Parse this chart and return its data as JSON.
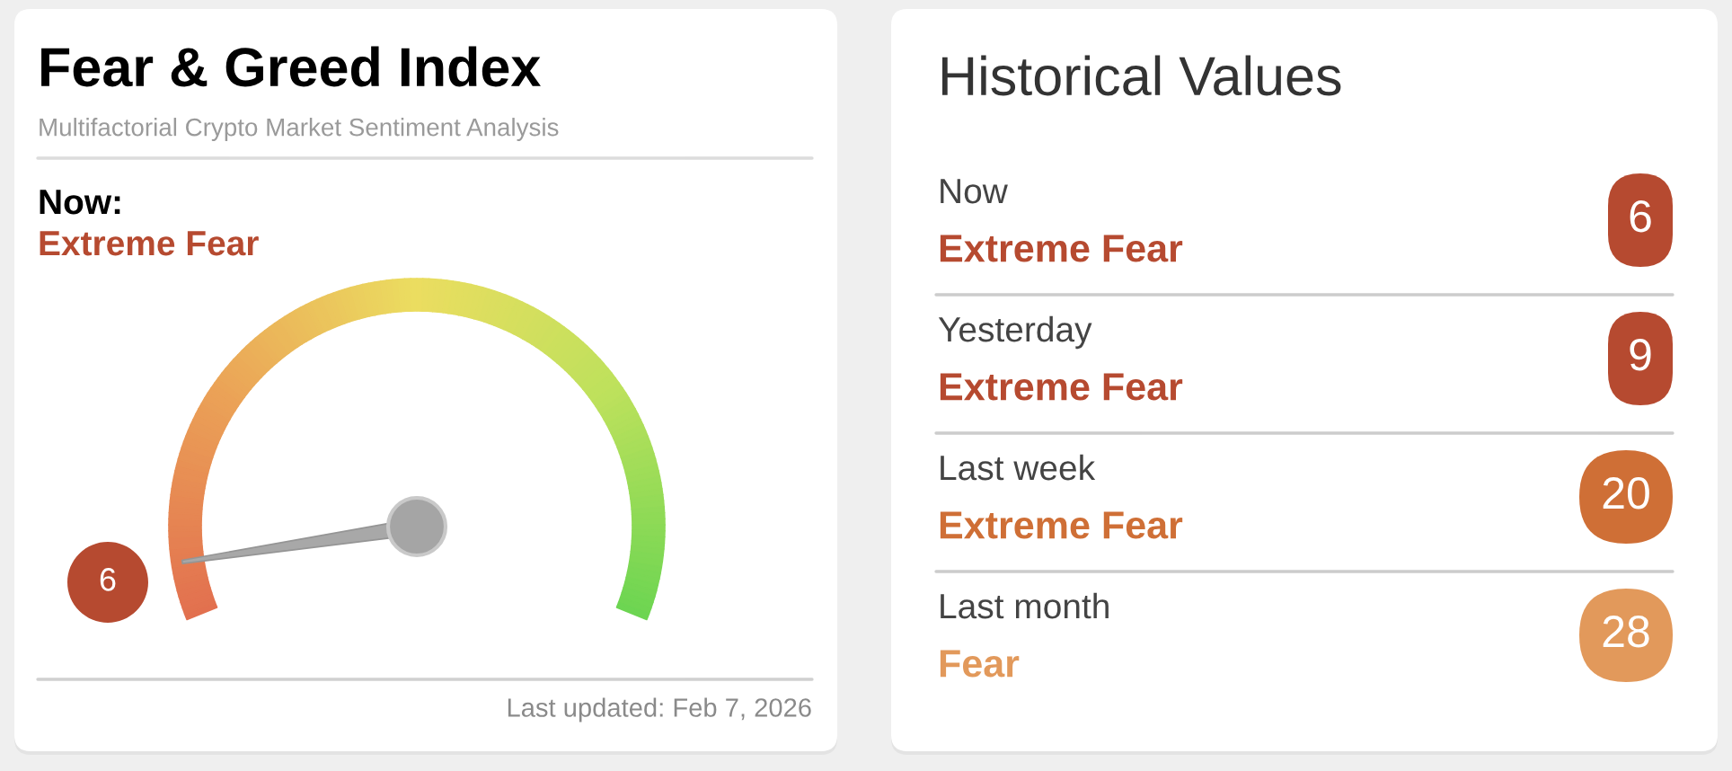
{
  "chart_data": [
    {
      "type": "other",
      "title": "Historical Values",
      "categories": [
        "Now",
        "Yesterday",
        "Last week",
        "Last month"
      ],
      "values": [
        6,
        9,
        20,
        28
      ],
      "colors": [
        "#b64a30",
        "#b64a30",
        "#cf6f36",
        "#e2995b"
      ],
      "data_labels": true,
      "annotations": [
        "Extreme Fear",
        "Extreme Fear",
        "Extreme Fear",
        "Fear"
      ]
    },
    {
      "type": "other",
      "title": "Fear & Greed Index",
      "subtitle": "Multifactorial Crypto Market Sentiment Analysis",
      "values": [
        6
      ],
      "color": "#b64a30",
      "data_labels": true,
      "annotations": [
        "Now:",
        "Extreme Fear",
        "Last updated: Feb 7, 2026"
      ]
    }
  ]
}
